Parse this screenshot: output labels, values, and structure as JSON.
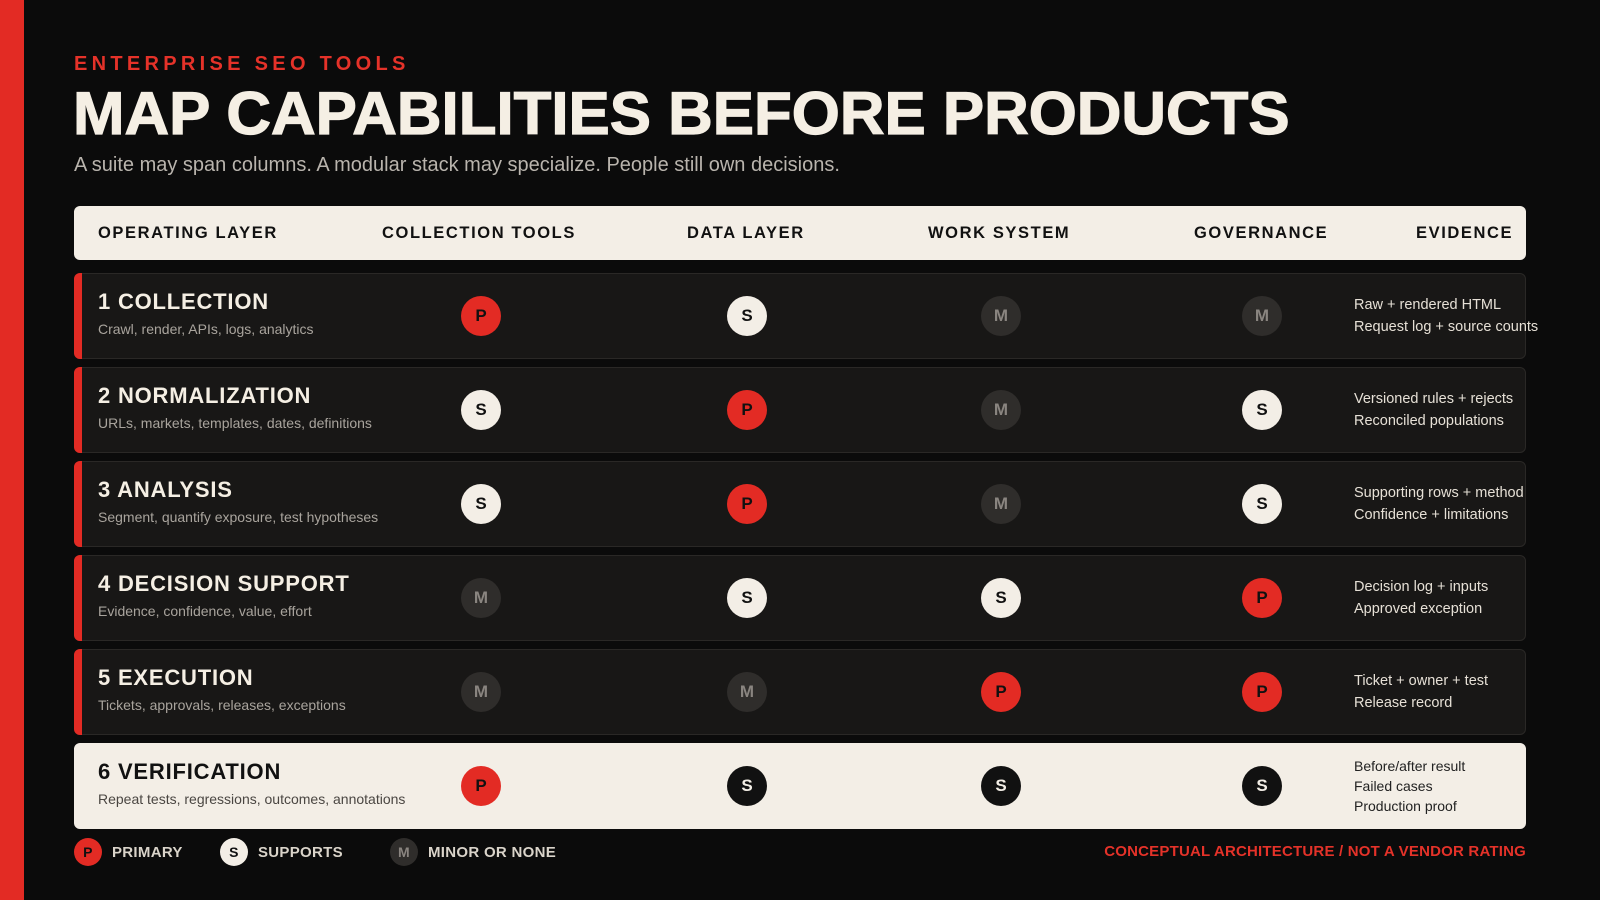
{
  "eyebrow": "ENTERPRISE SEO TOOLS",
  "title": "MAP CAPABILITIES BEFORE PRODUCTS",
  "subtitle": "A suite may span columns. A modular stack may specialize. People still own decisions.",
  "columns": [
    "OPERATING LAYER",
    "COLLECTION TOOLS",
    "DATA LAYER",
    "WORK SYSTEM",
    "GOVERNANCE",
    "EVIDENCE"
  ],
  "rows": [
    {
      "name": "1 COLLECTION",
      "desc": "Crawl, render, APIs, logs, analytics",
      "ratings": [
        "P",
        "S",
        "M",
        "M"
      ],
      "evidence": [
        "Raw + rendered HTML",
        "Request log + source counts"
      ]
    },
    {
      "name": "2 NORMALIZATION",
      "desc": "URLs, markets, templates, dates, definitions",
      "ratings": [
        "S",
        "P",
        "M",
        "S"
      ],
      "evidence": [
        "Versioned rules + rejects",
        "Reconciled populations"
      ]
    },
    {
      "name": "3 ANALYSIS",
      "desc": "Segment, quantify exposure, test hypotheses",
      "ratings": [
        "S",
        "P",
        "M",
        "S"
      ],
      "evidence": [
        "Supporting rows + method",
        "Confidence + limitations"
      ]
    },
    {
      "name": "4 DECISION SUPPORT",
      "desc": "Evidence, confidence, value, effort",
      "ratings": [
        "M",
        "S",
        "S",
        "P"
      ],
      "evidence": [
        "Decision log + inputs",
        "Approved exception"
      ]
    },
    {
      "name": "5 EXECUTION",
      "desc": "Tickets, approvals, releases, exceptions",
      "ratings": [
        "M",
        "M",
        "P",
        "P"
      ],
      "evidence": [
        "Ticket + owner + test",
        "Release record"
      ]
    },
    {
      "name": "6 VERIFICATION",
      "desc": "Repeat tests, regressions, outcomes, annotations",
      "ratings": [
        "P",
        "S",
        "S",
        "S"
      ],
      "evidence": [
        "Before/after result",
        "Failed cases",
        "Production proof"
      ]
    }
  ],
  "legend": [
    {
      "key": "P",
      "label": "PRIMARY"
    },
    {
      "key": "S",
      "label": "SUPPORTS"
    },
    {
      "key": "M",
      "label": "MINOR OR NONE"
    }
  ],
  "footnote": "CONCEPTUAL ARCHITECTURE / NOT A VENDOR RATING",
  "colors": {
    "accent": "#e32b24",
    "background": "#0b0b0b",
    "cream": "#f3eee6",
    "minor": "#2f2d2b"
  }
}
